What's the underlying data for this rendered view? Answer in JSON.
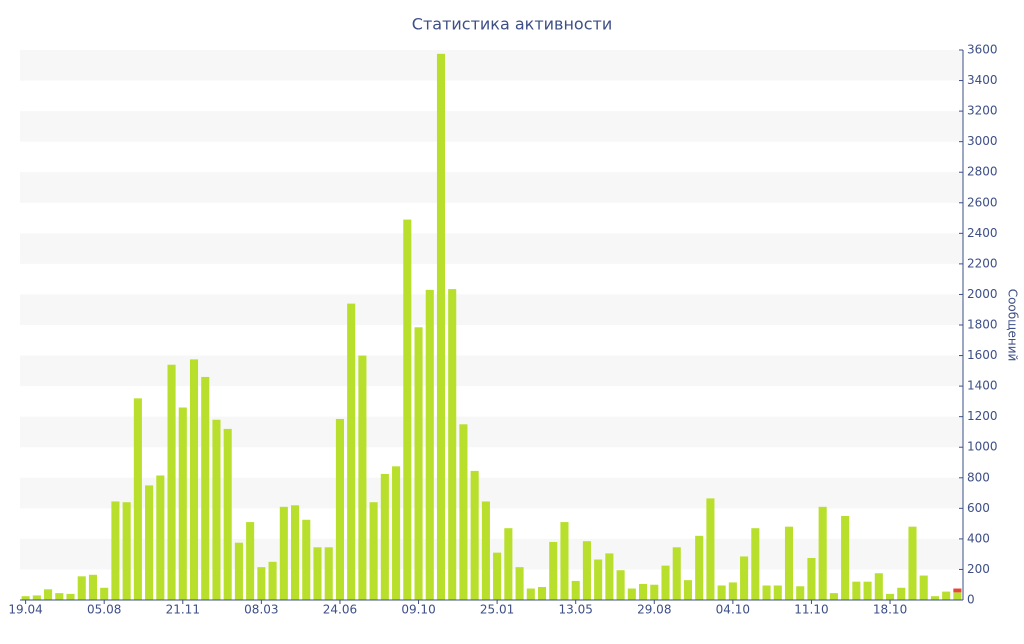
{
  "chart_data": {
    "type": "bar",
    "title": "Статистика активности",
    "y_label": "Сообщений",
    "categories": [
      "19.04",
      null,
      null,
      null,
      null,
      null,
      null,
      "05.08",
      null,
      null,
      null,
      null,
      null,
      null,
      "21.11",
      null,
      null,
      null,
      null,
      null,
      null,
      "08.03",
      null,
      null,
      null,
      null,
      null,
      null,
      "24.06",
      null,
      null,
      null,
      null,
      null,
      null,
      "09.10",
      null,
      null,
      null,
      null,
      null,
      null,
      "25.01",
      null,
      null,
      null,
      null,
      null,
      null,
      "13.05",
      null,
      null,
      null,
      null,
      null,
      null,
      "29.08",
      null,
      null,
      null,
      null,
      null,
      null,
      "04.10",
      null,
      null,
      null,
      null,
      null,
      null,
      "11.10",
      null,
      null,
      null,
      null,
      null,
      null,
      "18.10",
      null,
      null,
      null,
      null,
      null,
      null
    ],
    "series": [
      {
        "color": "#b8df2c",
        "values": [
          25,
          30,
          70,
          45,
          40,
          155,
          165,
          80,
          645,
          640,
          1320,
          750,
          815,
          1540,
          1260,
          1575,
          1460,
          1180,
          1120,
          375,
          510,
          215,
          250,
          610,
          620,
          525,
          345,
          345,
          1185,
          1940,
          1600,
          640,
          825,
          875,
          2490,
          1785,
          2030,
          3575,
          2035,
          1150,
          845,
          645,
          310,
          470,
          215,
          75,
          85,
          380,
          510,
          125,
          385,
          265,
          305,
          195,
          75,
          105,
          100,
          225,
          345,
          130,
          420,
          665,
          95,
          115,
          285,
          470,
          95,
          95,
          480,
          90,
          275,
          610,
          45,
          550,
          120,
          120,
          175,
          40,
          80,
          480,
          160,
          25,
          55,
          50
        ]
      },
      {
        "color": "#e8453c",
        "values": [
          0,
          0,
          0,
          0,
          0,
          0,
          0,
          0,
          0,
          0,
          0,
          0,
          0,
          0,
          0,
          0,
          0,
          0,
          0,
          0,
          0,
          0,
          0,
          0,
          0,
          0,
          0,
          0,
          0,
          0,
          0,
          0,
          0,
          0,
          0,
          0,
          0,
          0,
          0,
          0,
          0,
          0,
          0,
          0,
          0,
          0,
          0,
          0,
          0,
          0,
          0,
          0,
          0,
          0,
          0,
          0,
          0,
          0,
          0,
          0,
          0,
          0,
          0,
          0,
          0,
          0,
          0,
          0,
          0,
          0,
          0,
          0,
          0,
          0,
          0,
          0,
          0,
          0,
          0,
          0,
          0,
          0,
          0,
          25
        ]
      }
    ],
    "stacked": true,
    "ylim": [
      0,
      3600
    ],
    "yticks": [
      0,
      200,
      400,
      600,
      800,
      1000,
      1200,
      1400,
      1600,
      1800,
      2000,
      2200,
      2400,
      2600,
      2800,
      3000,
      3200,
      3400,
      3600
    ],
    "grid": "bands"
  }
}
